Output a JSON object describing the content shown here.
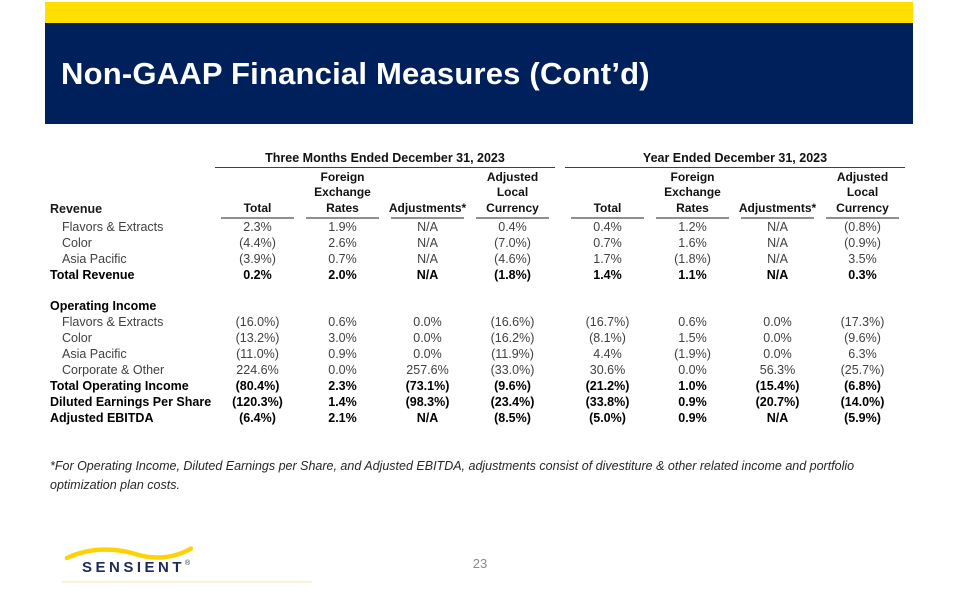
{
  "slide": {
    "title": "Non-GAAP Financial Measures (Cont’d)",
    "page_number": "23"
  },
  "colors": {
    "accent_yellow": "#FFDE00",
    "brand_navy": "#00205C",
    "logo_navy": "#1E2B58",
    "rule_gray": "#8F8F8F"
  },
  "logo": {
    "text": "SENSIENT",
    "registered_mark": "®"
  },
  "footnote": "*For Operating Income, Diluted Earnings per Share, and Adjusted EBITDA, adjustments consist of divestiture & other related income and portfolio optimization plan costs.",
  "table": {
    "row_header": "Revenue",
    "groups": [
      {
        "title": "Three Months Ended December 31, 2023"
      },
      {
        "title": "Year Ended December 31, 2023"
      }
    ],
    "col_headers": [
      {
        "lines": [
          "Total"
        ]
      },
      {
        "lines": [
          "Foreign",
          "Exchange",
          "Rates"
        ]
      },
      {
        "lines": [
          "Adjustments*"
        ]
      },
      {
        "lines": [
          "Adjusted",
          "Local",
          "Currency"
        ]
      },
      {
        "lines": [
          "Total"
        ]
      },
      {
        "lines": [
          "Foreign",
          "Exchange",
          "Rates"
        ]
      },
      {
        "lines": [
          "Adjustments*"
        ]
      },
      {
        "lines": [
          "Adjusted",
          "Local",
          "Currency"
        ]
      }
    ],
    "rows": [
      {
        "style": "item",
        "label": "Flavors & Extracts",
        "values": [
          "2.3%",
          "1.9%",
          "N/A",
          "0.4%",
          "0.4%",
          "1.2%",
          "N/A",
          "(0.8%)"
        ]
      },
      {
        "style": "item",
        "label": "Color",
        "values": [
          "(4.4%)",
          "2.6%",
          "N/A",
          "(7.0%)",
          "0.7%",
          "1.6%",
          "N/A",
          "(0.9%)"
        ]
      },
      {
        "style": "item",
        "label": "Asia Pacific",
        "values": [
          "(3.9%)",
          "0.7%",
          "N/A",
          "(4.6%)",
          "1.7%",
          "(1.8%)",
          "N/A",
          "3.5%"
        ]
      },
      {
        "style": "total",
        "label": "Total Revenue",
        "values": [
          "0.2%",
          "2.0%",
          "N/A",
          "(1.8%)",
          "1.4%",
          "1.1%",
          "N/A",
          "0.3%"
        ]
      },
      {
        "style": "spacer",
        "label": "",
        "values": []
      },
      {
        "style": "section",
        "label": "Operating Income",
        "values": []
      },
      {
        "style": "item",
        "label": "Flavors & Extracts",
        "values": [
          "(16.0%)",
          "0.6%",
          "0.0%",
          "(16.6%)",
          "(16.7%)",
          "0.6%",
          "0.0%",
          "(17.3%)"
        ]
      },
      {
        "style": "item",
        "label": "Color",
        "values": [
          "(13.2%)",
          "3.0%",
          "0.0%",
          "(16.2%)",
          "(8.1%)",
          "1.5%",
          "0.0%",
          "(9.6%)"
        ]
      },
      {
        "style": "item",
        "label": "Asia Pacific",
        "values": [
          "(11.0%)",
          "0.9%",
          "0.0%",
          "(11.9%)",
          "4.4%",
          "(1.9%)",
          "0.0%",
          "6.3%"
        ]
      },
      {
        "style": "item",
        "label": "Corporate & Other",
        "values": [
          "224.6%",
          "0.0%",
          "257.6%",
          "(33.0%)",
          "30.6%",
          "0.0%",
          "56.3%",
          "(25.7%)"
        ]
      },
      {
        "style": "total",
        "label": "Total Operating Income",
        "values": [
          "(80.4%)",
          "2.3%",
          "(73.1%)",
          "(9.6%)",
          "(21.2%)",
          "1.0%",
          "(15.4%)",
          "(6.8%)"
        ]
      },
      {
        "style": "total",
        "label": "Diluted Earnings Per Share",
        "values": [
          "(120.3%)",
          "1.4%",
          "(98.3%)",
          "(23.4%)",
          "(33.8%)",
          "0.9%",
          "(20.7%)",
          "(14.0%)"
        ]
      },
      {
        "style": "total",
        "label": "Adjusted EBITDA",
        "values": [
          "(6.4%)",
          "2.1%",
          "N/A",
          "(8.5%)",
          "(5.0%)",
          "0.9%",
          "N/A",
          "(5.9%)"
        ]
      }
    ]
  }
}
